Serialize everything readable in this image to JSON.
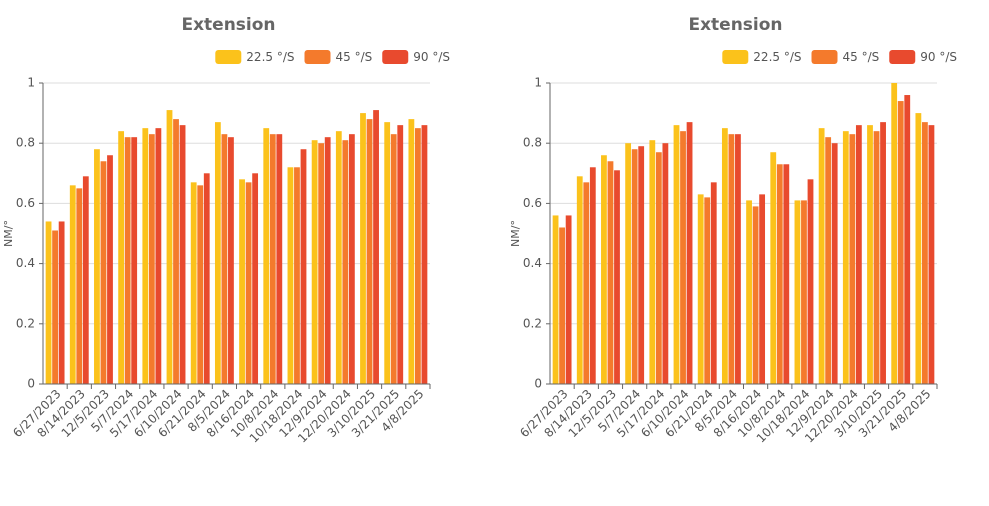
{
  "chart_data": [
    {
      "type": "bar",
      "title": "Extension",
      "y_label": "NM/°",
      "categories": [
        "6/27/2023",
        "8/14/2023",
        "12/5/2023",
        "5/7/2024",
        "5/17/2024",
        "6/10/2024",
        "6/21/2024",
        "8/5/2024",
        "8/16/2024",
        "10/8/2024",
        "10/18/2024",
        "12/9/2024",
        "12/20/2024",
        "3/10/2025",
        "3/21/2025",
        "4/8/2025"
      ],
      "series": [
        {
          "name": "22.5 °/S",
          "color": "#fbc21b",
          "values": [
            0.54,
            0.66,
            0.78,
            0.84,
            0.85,
            0.91,
            0.67,
            0.87,
            0.68,
            0.85,
            0.72,
            0.81,
            0.84,
            0.9,
            0.87,
            0.88
          ]
        },
        {
          "name": "45 °/S",
          "color": "#f47a2c",
          "values": [
            0.51,
            0.65,
            0.74,
            0.82,
            0.83,
            0.88,
            0.66,
            0.83,
            0.67,
            0.83,
            0.72,
            0.8,
            0.81,
            0.88,
            0.83,
            0.85
          ]
        },
        {
          "name": "90 °/S",
          "color": "#e84a2e",
          "values": [
            0.54,
            0.69,
            0.76,
            0.82,
            0.85,
            0.86,
            0.7,
            0.82,
            0.7,
            0.83,
            0.78,
            0.82,
            0.83,
            0.91,
            0.86,
            0.86
          ]
        }
      ],
      "ylim": [
        0,
        1
      ],
      "yticks": [
        0,
        0.2,
        0.4,
        0.6,
        0.8,
        1
      ],
      "grid": true,
      "legend": "top-right"
    },
    {
      "type": "bar",
      "title": "Extension",
      "y_label": "NM/°",
      "categories": [
        "6/27/2023",
        "8/14/2023",
        "12/5/2023",
        "5/7/2024",
        "5/17/2024",
        "6/10/2024",
        "6/21/2024",
        "8/5/2024",
        "8/16/2024",
        "10/8/2024",
        "10/18/2024",
        "12/9/2024",
        "12/20/2024",
        "3/10/2025",
        "3/21/2025",
        "4/8/2025"
      ],
      "series": [
        {
          "name": "22.5 °/S",
          "color": "#fbc21b",
          "values": [
            0.56,
            0.69,
            0.76,
            0.8,
            0.81,
            0.86,
            0.63,
            0.85,
            0.61,
            0.77,
            0.61,
            0.85,
            0.84,
            0.86,
            1.0,
            0.9
          ]
        },
        {
          "name": "45 °/S",
          "color": "#f47a2c",
          "values": [
            0.52,
            0.67,
            0.74,
            0.78,
            0.77,
            0.84,
            0.62,
            0.83,
            0.59,
            0.73,
            0.61,
            0.82,
            0.83,
            0.84,
            0.94,
            0.87
          ]
        },
        {
          "name": "90 °/S",
          "color": "#e84a2e",
          "values": [
            0.56,
            0.72,
            0.71,
            0.79,
            0.8,
            0.87,
            0.67,
            0.83,
            0.63,
            0.73,
            0.68,
            0.8,
            0.86,
            0.87,
            0.96,
            0.86
          ]
        }
      ],
      "ylim": [
        0,
        1
      ],
      "yticks": [
        0,
        0.2,
        0.4,
        0.6,
        0.8,
        1
      ],
      "grid": true,
      "legend": "top-right"
    }
  ]
}
